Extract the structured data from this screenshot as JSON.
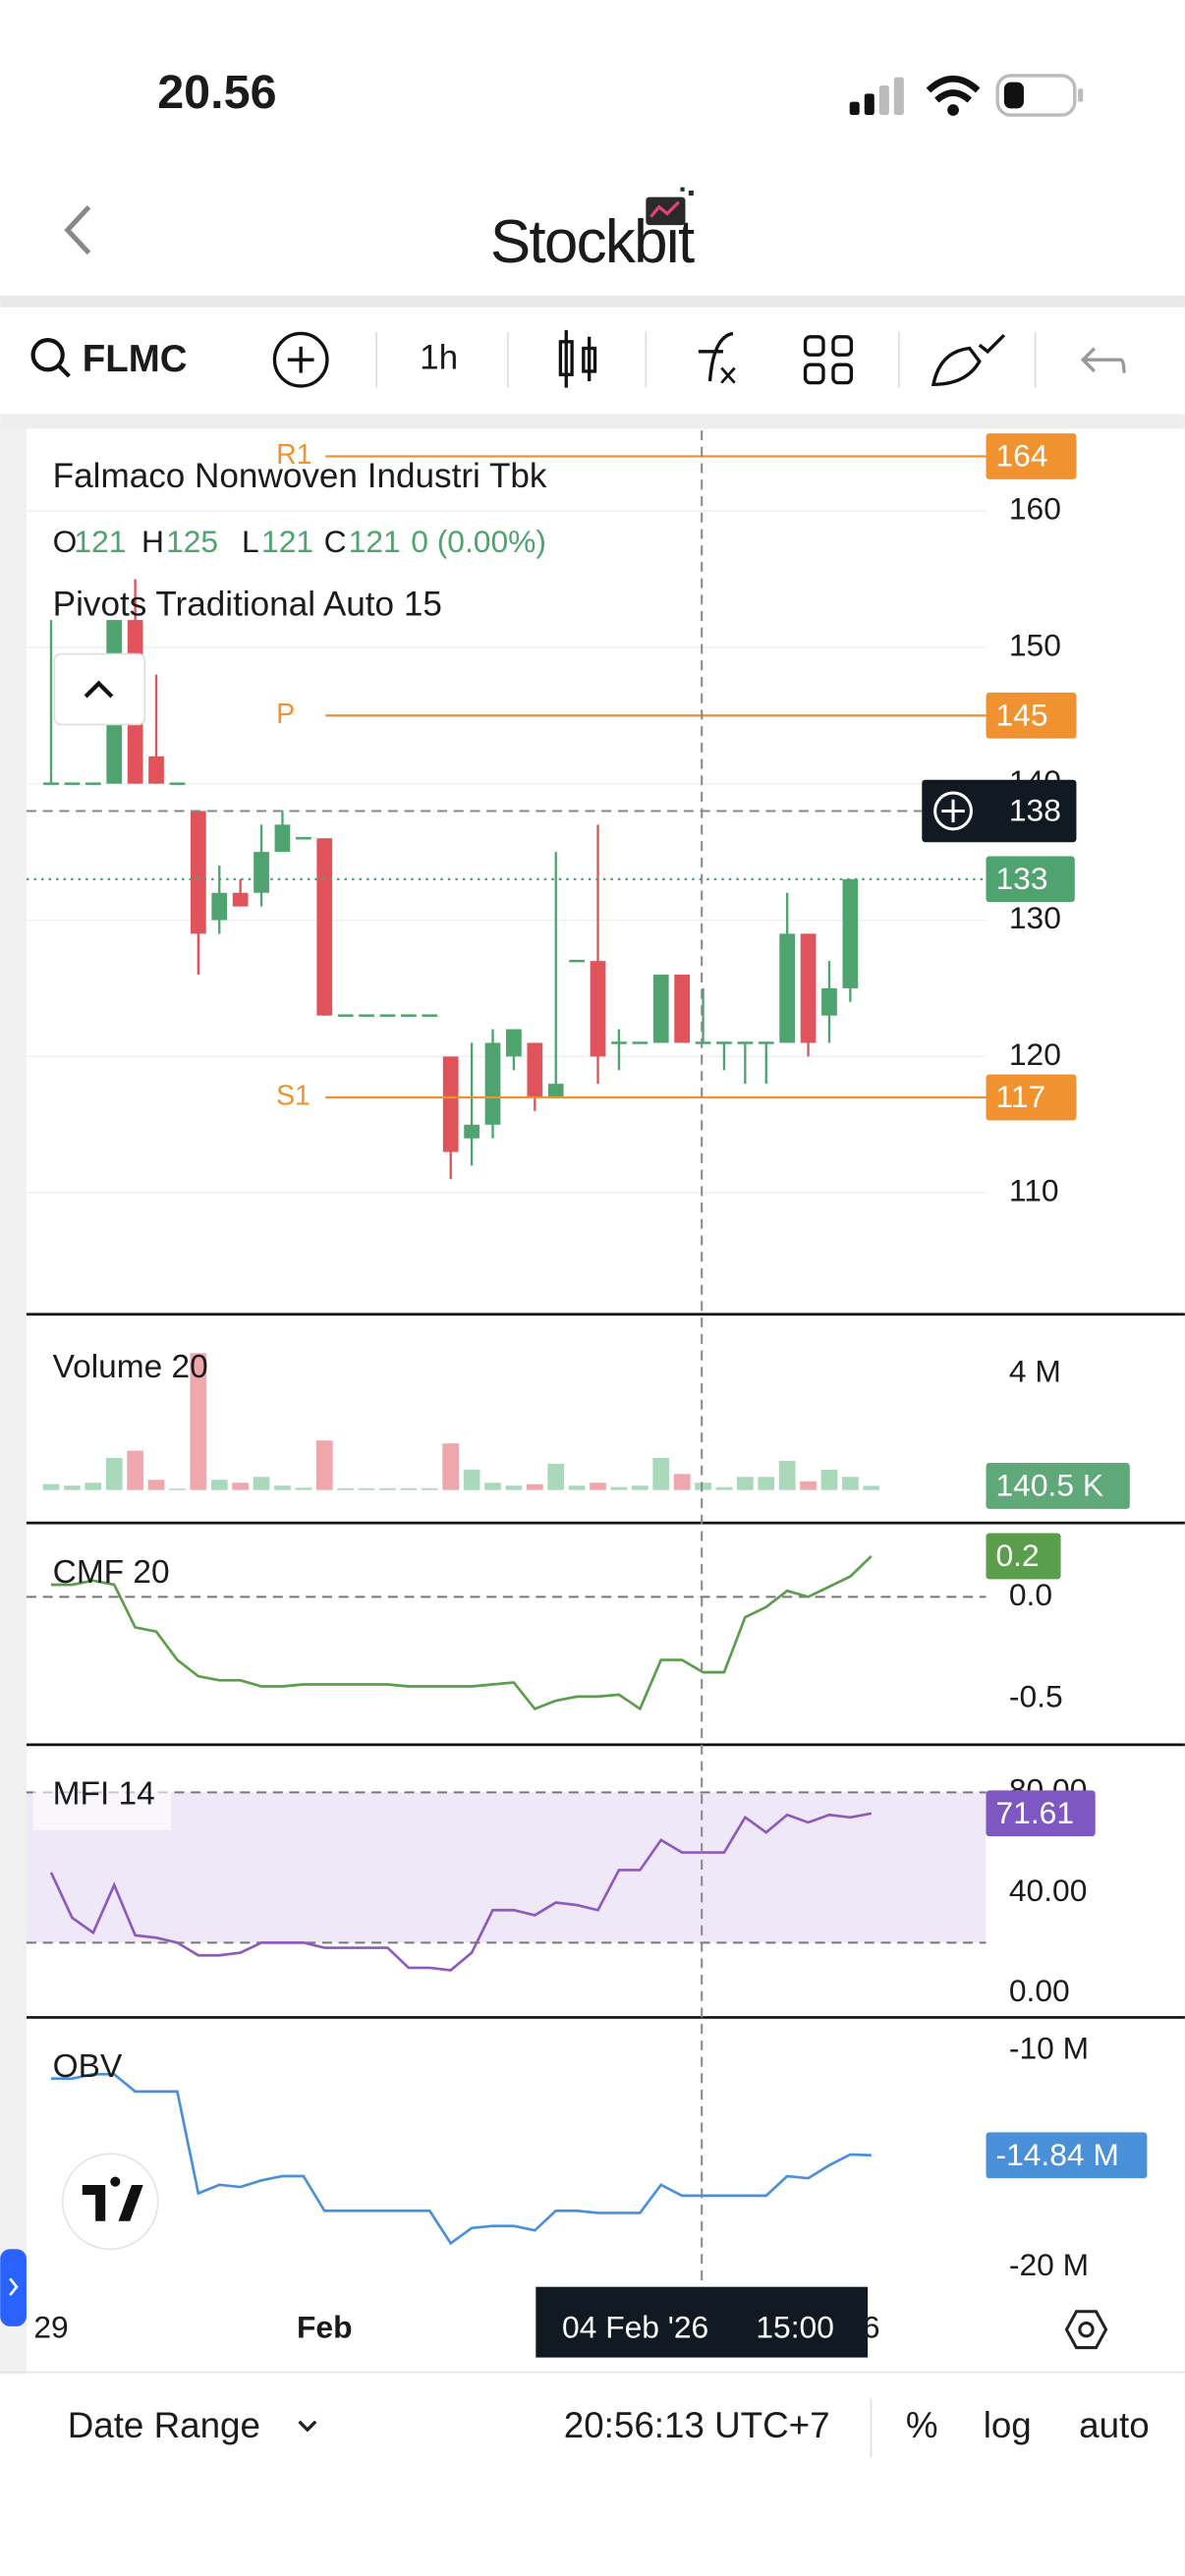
{
  "status_bar": {
    "time": "20.56"
  },
  "header": {
    "title": "Stockbit"
  },
  "toolbar": {
    "symbol": "FLMC",
    "interval": "1h"
  },
  "chart_data": [
    {
      "type": "candlestick",
      "title": "Falmaco Nonwoven Industri Tbk",
      "ohlc_labels": [
        "O",
        "H",
        "L",
        "C"
      ],
      "change": "0 (0.00%)",
      "indicator": "Pivots Traditional Auto 15",
      "categories": [
        "29",
        null,
        null,
        null,
        null,
        null,
        null,
        null,
        null,
        null,
        null,
        null,
        null,
        "Feb",
        null,
        null,
        null,
        null,
        null,
        null,
        null,
        null,
        null,
        null,
        null,
        null,
        null,
        null,
        null,
        null,
        null,
        null,
        null,
        null,
        null,
        null,
        null,
        null,
        null,
        "6"
      ],
      "open": [
        140,
        140,
        140,
        140,
        152,
        142,
        140,
        138,
        130,
        132,
        132,
        135,
        136,
        136,
        123,
        123,
        123,
        123,
        123,
        120,
        114,
        115,
        120,
        121,
        117,
        127,
        127,
        121,
        121,
        121,
        126,
        121,
        121,
        121,
        121,
        121,
        129,
        123,
        125,
        null
      ],
      "high": [
        152,
        140,
        140,
        152,
        155,
        148,
        140,
        138,
        134,
        133,
        137,
        138,
        136,
        136,
        123,
        123,
        123,
        123,
        123,
        120,
        121,
        122,
        122,
        121,
        135,
        127,
        137,
        122,
        121,
        126,
        126,
        125,
        121,
        121,
        121,
        132,
        129,
        127,
        133,
        null
      ],
      "low": [
        140,
        140,
        140,
        140,
        140,
        140,
        140,
        126,
        129,
        131,
        131,
        135,
        136,
        123,
        123,
        123,
        123,
        123,
        123,
        111,
        112,
        114,
        119,
        116,
        117,
        127,
        118,
        119,
        121,
        121,
        121,
        121,
        119,
        118,
        118,
        121,
        120,
        121,
        124,
        null
      ],
      "close": [
        140,
        140,
        140,
        152,
        140,
        140,
        140,
        129,
        132,
        131,
        135,
        137,
        136,
        123,
        123,
        123,
        123,
        123,
        123,
        113,
        115,
        121,
        122,
        117,
        118,
        127,
        120,
        121,
        121,
        126,
        121,
        121,
        121,
        121,
        121,
        129,
        121,
        125,
        133,
        null
      ],
      "up_color": "#4fa36f",
      "down_color": "#e0535a",
      "ylim": [
        101.1,
        165.9
      ],
      "yticks": [
        110,
        120,
        130,
        140,
        150,
        160
      ],
      "grid": true,
      "pivots": [
        {
          "name": "R1",
          "value": 164
        },
        {
          "name": "P",
          "value": 145
        },
        {
          "name": "S1",
          "value": 117
        }
      ],
      "pivot_color": "#f0922f",
      "last_price": 133,
      "crosshair": {
        "price": 138,
        "date": "04 Feb '26",
        "time": "15:00"
      }
    },
    {
      "type": "bar",
      "title": "Volume 20",
      "values": [
        200000,
        150000,
        250000,
        1100000,
        1350000,
        350000,
        50000,
        4700000,
        350000,
        250000,
        450000,
        150000,
        80000,
        1700000,
        60000,
        60000,
        60000,
        60000,
        60000,
        1600000,
        700000,
        250000,
        150000,
        200000,
        900000,
        150000,
        250000,
        100000,
        150000,
        1100000,
        550000,
        250000,
        100000,
        450000,
        450000,
        1000000,
        300000,
        700000,
        450000,
        140500
      ],
      "value_labels": [
        null,
        null,
        null,
        null,
        null,
        null,
        null,
        null,
        null,
        null,
        null,
        null,
        null,
        null,
        null,
        null,
        null,
        null,
        null,
        null,
        null,
        null,
        null,
        null,
        null,
        null,
        null,
        null,
        null,
        null,
        null,
        null,
        null,
        null,
        null,
        null,
        null,
        null,
        null,
        "140.5 K"
      ],
      "up_color": "#a9d8bb",
      "down_color": "#eea8ad",
      "label_color": "#5fa878",
      "ylim": [
        -1130000,
        5920000
      ],
      "yticks": [
        {
          "value": 4000000,
          "label": "4 M"
        }
      ]
    },
    {
      "type": "line",
      "title": "CMF 20",
      "color": "#5a9e4b",
      "values": [
        0.06,
        0.06,
        0.08,
        0.06,
        -0.15,
        -0.17,
        -0.31,
        -0.39,
        -0.41,
        -0.41,
        -0.44,
        -0.44,
        -0.43,
        -0.43,
        -0.43,
        -0.43,
        -0.43,
        -0.44,
        -0.44,
        -0.44,
        -0.44,
        -0.43,
        -0.42,
        -0.55,
        -0.51,
        -0.49,
        -0.49,
        -0.48,
        -0.55,
        -0.31,
        -0.31,
        -0.37,
        -0.37,
        -0.1,
        -0.05,
        0.03,
        0.0,
        0.05,
        0.1,
        0.2
      ],
      "ylim": [
        -0.726,
        0.363
      ],
      "yticks": [
        {
          "value": 0,
          "label": "0.0"
        },
        -0.5
      ],
      "hlines": [
        0
      ]
    },
    {
      "type": "line",
      "title": "MFI 14",
      "color": "#8e5bbd",
      "band_color": "#efe8f8",
      "values": [
        48,
        30,
        24,
        43,
        23,
        22,
        20,
        15,
        15,
        16,
        20,
        20,
        20,
        18,
        18,
        18,
        18,
        10,
        10,
        9,
        16,
        33,
        33,
        31,
        36,
        35,
        33,
        49,
        49,
        61,
        56,
        56,
        56,
        70,
        64,
        71,
        68,
        71,
        70,
        71.61
      ],
      "ylim": [
        -9.8,
        99
      ],
      "yticks": [
        {
          "value": 80,
          "label": "80.00"
        },
        {
          "value": 40,
          "label": "40.00"
        },
        {
          "value": 0,
          "label": "0.00"
        }
      ],
      "band": [
        20,
        80
      ]
    },
    {
      "type": "line",
      "title": "OBV",
      "color": "#4a90d9",
      "values": [
        -11300000,
        -11300000,
        -11100000,
        -11100000,
        -11900000,
        -11900000,
        -11900000,
        -16600000,
        -16200000,
        -16300000,
        -16000000,
        -15800000,
        -15800000,
        -17400000,
        -17400000,
        -17400000,
        -17400000,
        -17400000,
        -17400000,
        -18900000,
        -18200000,
        -18100000,
        -18100000,
        -18300000,
        -17400000,
        -17400000,
        -17500000,
        -17500000,
        -17500000,
        -16200000,
        -16700000,
        -16700000,
        -16700000,
        -16700000,
        -16700000,
        -15800000,
        -15900000,
        -15300000,
        -14800000,
        -14840000
      ],
      "value_labels": [
        null,
        null,
        null,
        null,
        null,
        null,
        null,
        null,
        null,
        null,
        null,
        null,
        null,
        null,
        null,
        null,
        null,
        null,
        null,
        null,
        null,
        null,
        null,
        null,
        null,
        null,
        null,
        null,
        null,
        null,
        null,
        null,
        null,
        null,
        null,
        null,
        null,
        null,
        null,
        "-14.84 M"
      ],
      "ylim": [
        -20910000,
        -8480000
      ],
      "yticks": [
        {
          "value": -10000000,
          "label": "-10 M"
        },
        {
          "value": -20000000,
          "label": "-20 M"
        }
      ]
    }
  ],
  "footer": {
    "date_range": "Date Range",
    "clock": "20:56:13 UTC+7",
    "percent": "%",
    "log": "log",
    "auto": "auto"
  }
}
